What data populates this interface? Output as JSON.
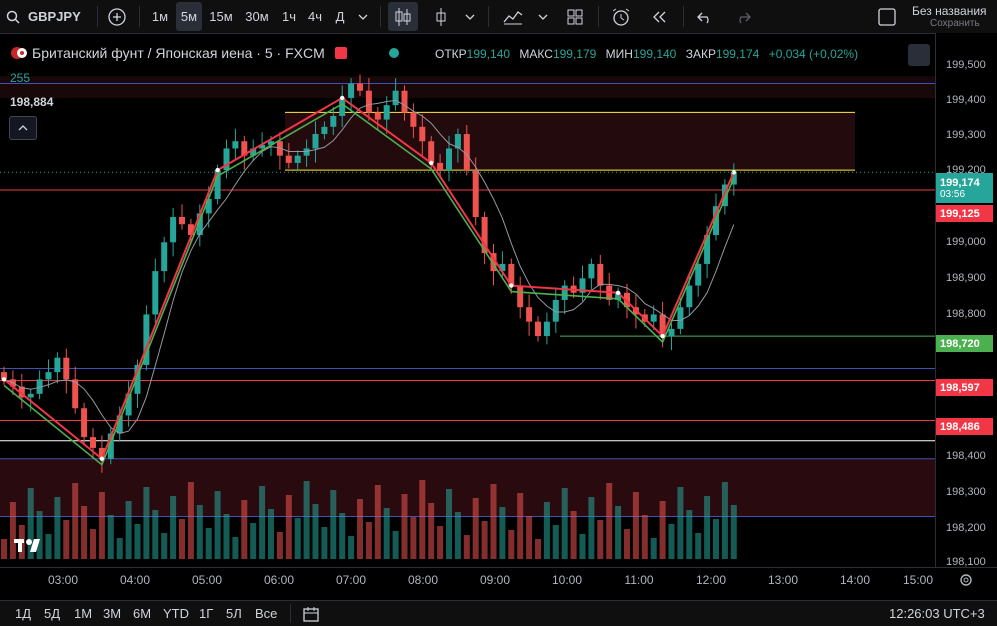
{
  "topbar": {
    "symbol": "GBPJPY",
    "timeframes": [
      "1м",
      "5м",
      "15м",
      "30м",
      "1ч",
      "4ч",
      "Д"
    ],
    "active_timeframe": "5м",
    "layout_name": "Без названия",
    "save_label": "Сохранить"
  },
  "legend": {
    "title": "Британский фунт / Японская иена · 5 · FXCM",
    "open_label": "ОТКР",
    "open": "199,140",
    "high_label": "МАКС",
    "high": "199,179",
    "low_label": "МИН",
    "low": "199,140",
    "close_label": "ЗАКР",
    "close": "199,174",
    "change": "+0,034 (+0,02%)",
    "volume_value": "255",
    "indicator_value": "198,884"
  },
  "colors": {
    "up": "#26a69a",
    "down": "#ef5350",
    "background": "#000000"
  },
  "price_axis": {
    "ticks": [
      "199,500",
      "199,400",
      "199,300",
      "199,200",
      "199,000",
      "198,900",
      "198,800",
      "198,400",
      "198,300",
      "198,200",
      "198,100"
    ],
    "current_price": "199,174",
    "countdown": "03:56",
    "tags": [
      {
        "label": "199,125",
        "color": "#f23645"
      },
      {
        "label": "198,720",
        "color": "#4caf50"
      },
      {
        "label": "198,597",
        "color": "#f23645"
      },
      {
        "label": "198,486",
        "color": "#f23645"
      }
    ]
  },
  "time_axis": {
    "ticks": [
      "03:00",
      "04:00",
      "05:00",
      "06:00",
      "07:00",
      "08:00",
      "09:00",
      "10:00",
      "11:00",
      "12:00",
      "13:00",
      "14:00",
      "15:00"
    ]
  },
  "bottombar": {
    "ranges": [
      "1Д",
      "5Д",
      "1М",
      "3М",
      "6М",
      "YTD",
      "1Г",
      "5Л",
      "Все"
    ],
    "clock": "12:26:03 UTC+3"
  },
  "chart_data": {
    "type": "candlestick",
    "x_label_axis": "time",
    "y_range": [
      198.08,
      199.56
    ],
    "candles_close_path": [
      198.6,
      198.58,
      198.55,
      198.56,
      198.6,
      198.62,
      198.66,
      198.6,
      198.52,
      198.44,
      198.41,
      198.38,
      198.45,
      198.5,
      198.56,
      198.64,
      198.78,
      198.9,
      198.98,
      199.05,
      199.03,
      199.0,
      199.06,
      199.1,
      199.18,
      199.24,
      199.26,
      199.22,
      199.24,
      199.25,
      199.26,
      199.22,
      199.2,
      199.22,
      199.24,
      199.28,
      199.3,
      199.33,
      199.38,
      199.42,
      199.4,
      199.34,
      199.32,
      199.36,
      199.4,
      199.34,
      199.3,
      199.26,
      199.2,
      199.18,
      199.24,
      199.28,
      199.18,
      199.05,
      198.95,
      198.9,
      198.92,
      198.86,
      198.8,
      198.76,
      198.72,
      198.76,
      198.82,
      198.86,
      198.84,
      198.88,
      198.92,
      198.86,
      198.82,
      198.84,
      198.8,
      198.78,
      198.76,
      198.78,
      198.72,
      198.74,
      198.8,
      198.86,
      198.92,
      199.0,
      199.08,
      199.14,
      199.174
    ],
    "levels": [
      {
        "price": 199.42,
        "color": "#3f51b5"
      },
      {
        "price": 199.34,
        "color": "#ffeb3b"
      },
      {
        "price": 199.18,
        "color": "#ffeb3b"
      },
      {
        "price": 199.125,
        "color": "#f23645"
      },
      {
        "price": 198.72,
        "color": "#4caf50"
      },
      {
        "price": 198.63,
        "color": "#3f51b5"
      },
      {
        "price": 198.597,
        "color": "#f23645"
      },
      {
        "price": 198.486,
        "color": "#f23645"
      },
      {
        "price": 198.43,
        "color": "#ffffff"
      },
      {
        "price": 198.38,
        "color": "#3f51b5"
      },
      {
        "price": 198.22,
        "color": "#3f51b5"
      }
    ]
  }
}
